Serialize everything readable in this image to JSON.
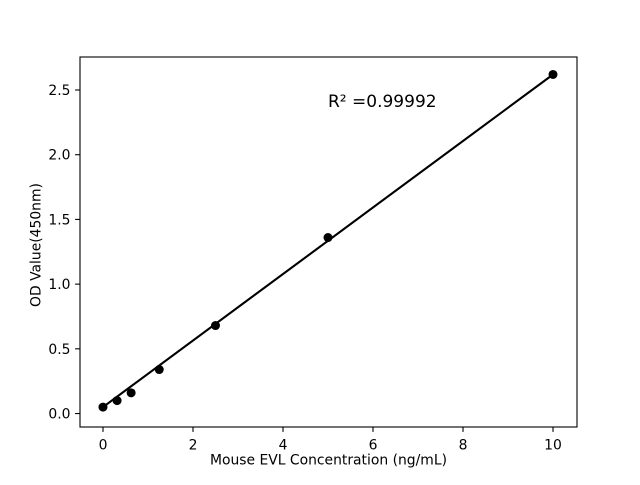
{
  "figure": {
    "background": "#ffffff"
  },
  "chart_data": {
    "type": "scatter",
    "title": "",
    "xlabel": "Mouse EVL Concentration (ng/mL)",
    "ylabel": "OD Value(450nm)",
    "x": [
      0,
      0.313,
      0.625,
      1.25,
      2.5,
      5,
      10
    ],
    "y": [
      0.05,
      0.1,
      0.16,
      0.34,
      0.68,
      1.36,
      2.62
    ],
    "fit_line": {
      "x": [
        0,
        10
      ],
      "y": [
        0.05,
        2.62
      ]
    },
    "annotation": {
      "text": "R² =0.99992",
      "x": 5,
      "y": 2.37
    },
    "xticks": {
      "values": [
        0,
        2,
        4,
        6,
        8,
        10
      ],
      "labels": [
        "0",
        "2",
        "4",
        "6",
        "8",
        "10"
      ]
    },
    "yticks": {
      "values": [
        0,
        0.5,
        1,
        1.5,
        2,
        2.5
      ],
      "labels": [
        "0.0",
        "0.5",
        "1.0",
        "1.5",
        "2.0",
        "2.5"
      ]
    },
    "xlim": [
      -0.511,
      10.533
    ],
    "ylim": [
      -0.104,
      2.755
    ],
    "grid": false,
    "legend": null,
    "marker_color": "#000000",
    "line_color": "#000000",
    "axis_color": "#000000",
    "background_color": "#ffffff"
  }
}
